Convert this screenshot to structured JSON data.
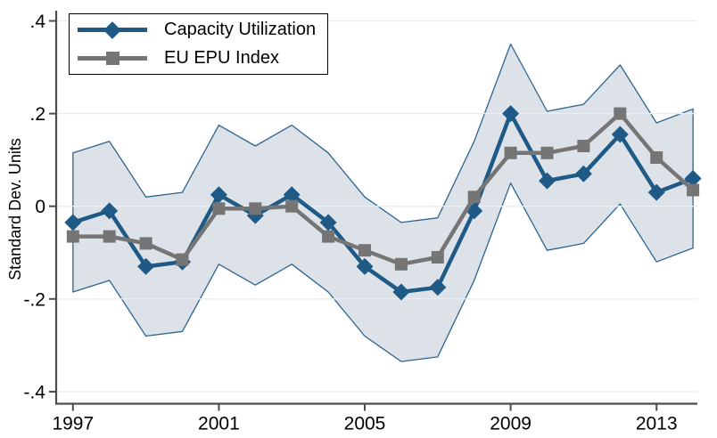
{
  "figure": {
    "ylabel": "Standard Dev. Units"
  },
  "legend": {
    "items": [
      {
        "label": "Capacity Utilization",
        "marker": "diamond-marker-icon",
        "color": "#1f5a87"
      },
      {
        "label": "EU EPU Index",
        "marker": "square-marker-icon",
        "color": "#757575"
      }
    ]
  },
  "colors": {
    "capacity_line": "#1f5a87",
    "epu_line": "#757575",
    "band_fill": "#dce2e8",
    "band_edge": "#2d6590",
    "gridline": "#e8eff5",
    "axis": "#4d4d4d",
    "text": "#000000"
  },
  "chart_data": {
    "type": "line",
    "title": "",
    "xlabel": "",
    "ylabel": "Standard Dev. Units",
    "grid": true,
    "legend_position": "top-left",
    "x": [
      1997,
      1998,
      1999,
      2000,
      2001,
      2002,
      2003,
      2004,
      2005,
      2006,
      2007,
      2008,
      2009,
      2010,
      2011,
      2012,
      2013,
      2014
    ],
    "series": [
      {
        "name": "Capacity Utilization",
        "marker": "diamond",
        "color": "#1f5a87",
        "values": [
          -0.035,
          -0.01,
          -0.13,
          -0.12,
          0.025,
          -0.02,
          0.025,
          -0.035,
          -0.13,
          -0.185,
          -0.175,
          -0.01,
          0.2,
          0.055,
          0.07,
          0.155,
          0.03,
          0.06
        ]
      },
      {
        "name": "EU EPU Index",
        "marker": "square",
        "color": "#757575",
        "values": [
          -0.065,
          -0.065,
          -0.08,
          -0.115,
          -0.005,
          -0.005,
          0.0,
          -0.065,
          -0.095,
          -0.125,
          -0.11,
          0.02,
          0.115,
          0.115,
          0.13,
          0.2,
          0.105,
          0.035
        ]
      }
    ],
    "confidence_band": {
      "around_series": "Capacity Utilization",
      "half_width": 0.15,
      "fill": "#dce2e8",
      "edge": "#2d6590"
    },
    "xticks": [
      {
        "v": 1997,
        "label": "1997"
      },
      {
        "v": 2001,
        "label": "2001"
      },
      {
        "v": 2005,
        "label": "2005"
      },
      {
        "v": 2009,
        "label": "2009"
      },
      {
        "v": 2013,
        "label": "2013"
      }
    ],
    "yticks": [
      {
        "v": 0.4,
        "label": ".4"
      },
      {
        "v": 0.2,
        "label": ".2"
      },
      {
        "v": 0.0,
        "label": "0"
      },
      {
        "v": -0.2,
        "label": "-.2"
      },
      {
        "v": -0.4,
        "label": "-.4"
      }
    ],
    "xlim": [
      1996.54,
      2014.12
    ],
    "ylim": [
      -0.426,
      0.422
    ]
  }
}
